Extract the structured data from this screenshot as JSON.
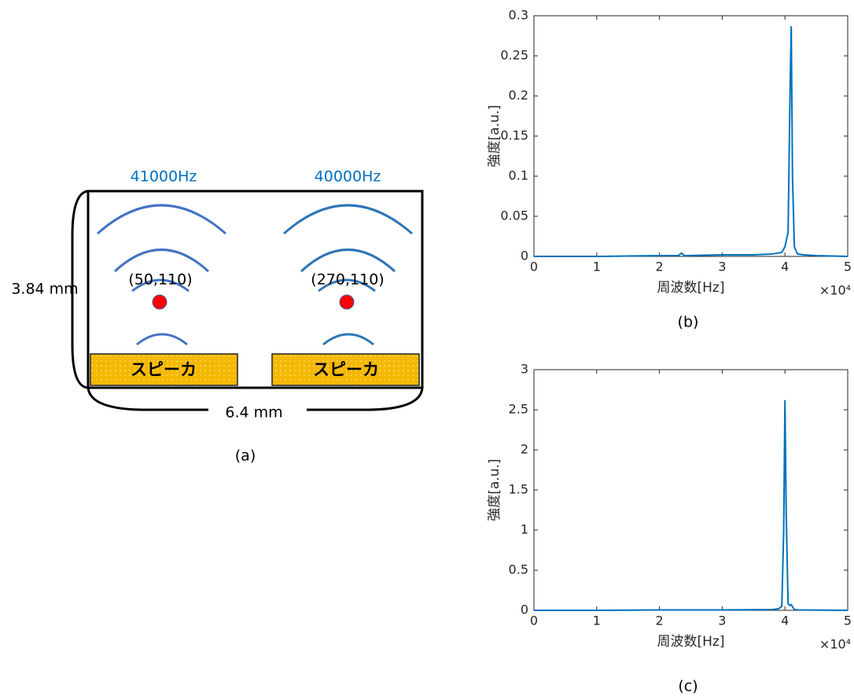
{
  "panel_a": {
    "frequencies": [
      "41000Hz",
      "40000Hz"
    ],
    "points": [
      "(50,110)",
      "(270,110)"
    ],
    "speakers": [
      "スピーカ",
      "スピーカ"
    ],
    "height_label": "3.84 mm",
    "width_label": "6.4 mm",
    "caption": "(a)"
  },
  "chart_data": [
    {
      "type": "line",
      "caption": "(b)",
      "x_label": "周波数[Hz]",
      "y_label": "強度[a.u.]",
      "x_scale_label": "×10⁴",
      "xlim": [
        0,
        5
      ],
      "xticks": [
        0,
        1,
        2,
        3,
        4,
        5
      ],
      "ylim": [
        0,
        0.3
      ],
      "yticks": [
        0,
        0.05,
        0.1,
        0.15,
        0.2,
        0.25,
        0.3
      ],
      "series": [
        {
          "color": "#0072bd",
          "x": [
            0,
            0.5,
            1,
            1.5,
            2,
            2.3,
            2.35,
            2.4,
            3,
            3.5,
            3.8,
            3.95,
            4.0,
            4.05,
            4.08,
            4.1,
            4.12,
            4.15,
            4.2,
            4.3,
            4.5,
            5
          ],
          "values": [
            0,
            0,
            0,
            0.0005,
            0.001,
            0.001,
            0.004,
            0.001,
            0.002,
            0.002,
            0.003,
            0.005,
            0.012,
            0.03,
            0.2,
            0.287,
            0.1,
            0.012,
            0.003,
            0.002,
            0.001,
            0
          ]
        }
      ]
    },
    {
      "type": "line",
      "caption": "(c)",
      "x_label": "周波数[Hz]",
      "y_label": "強度[a.u.]",
      "x_scale_label": "×10⁴",
      "xlim": [
        0,
        5
      ],
      "xticks": [
        0,
        1,
        2,
        3,
        4,
        5
      ],
      "ylim": [
        0,
        3
      ],
      "yticks": [
        0,
        0.5,
        1,
        1.5,
        2,
        2.5,
        3
      ],
      "series": [
        {
          "color": "#0072bd",
          "x": [
            0,
            1,
            2,
            3,
            3.8,
            3.9,
            3.95,
            3.98,
            4.0,
            4.02,
            4.05,
            4.08,
            4.1,
            4.15,
            4.2,
            5
          ],
          "values": [
            0,
            0,
            0.005,
            0.005,
            0.01,
            0.02,
            0.05,
            1.0,
            2.62,
            1.2,
            0.08,
            0.06,
            0.07,
            0.01,
            0.005,
            0
          ]
        }
      ]
    }
  ]
}
